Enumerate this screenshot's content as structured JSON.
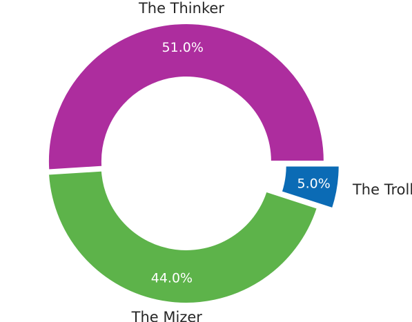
{
  "chart_data": {
    "type": "pie",
    "style": "donut",
    "slices": [
      {
        "label": "The Thinker",
        "value": 51.0,
        "pct_text": "51.0%",
        "color": "#ad2d9e"
      },
      {
        "label": "The Mizer",
        "value": 44.0,
        "pct_text": "44.0%",
        "color": "#5db34a"
      },
      {
        "label": "The Troll",
        "value": 5.0,
        "pct_text": "5.0%",
        "color": "#0b6bb5",
        "exploded": true
      }
    ]
  }
}
